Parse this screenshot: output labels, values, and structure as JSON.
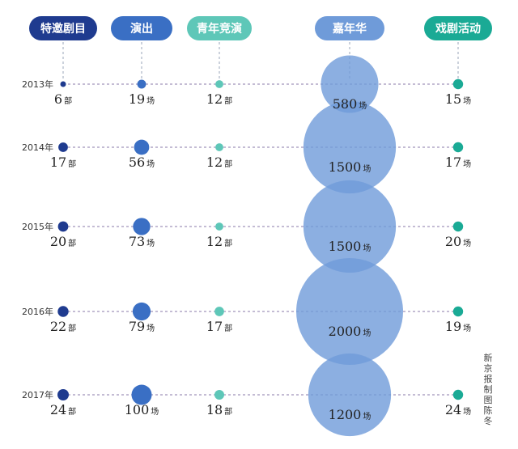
{
  "chart_data": {
    "type": "bubble-timeline",
    "columns": [
      {
        "name": "特邀剧目",
        "unit": "部",
        "color": "#1f3b8f",
        "values": [
          6,
          17,
          20,
          22,
          24
        ]
      },
      {
        "name": "演出",
        "unit": "场",
        "color": "#3a6fc4",
        "values": [
          19,
          56,
          73,
          79,
          100
        ]
      },
      {
        "name": "青年竞演",
        "unit": "部",
        "color": "#5ec7b8",
        "values": [
          12,
          12,
          12,
          17,
          18
        ]
      },
      {
        "name": "嘉年华",
        "unit": "场",
        "color": "#6f9bd9",
        "values": [
          580,
          1500,
          1500,
          2000,
          1200
        ]
      },
      {
        "name": "戏剧活动",
        "unit": "场",
        "color": "#1aaa95",
        "values": [
          15,
          17,
          20,
          19,
          24
        ]
      }
    ],
    "years": [
      "2013年",
      "2014年",
      "2015年",
      "2016年",
      "2017年"
    ]
  },
  "credit": "新京报制图陈冬"
}
